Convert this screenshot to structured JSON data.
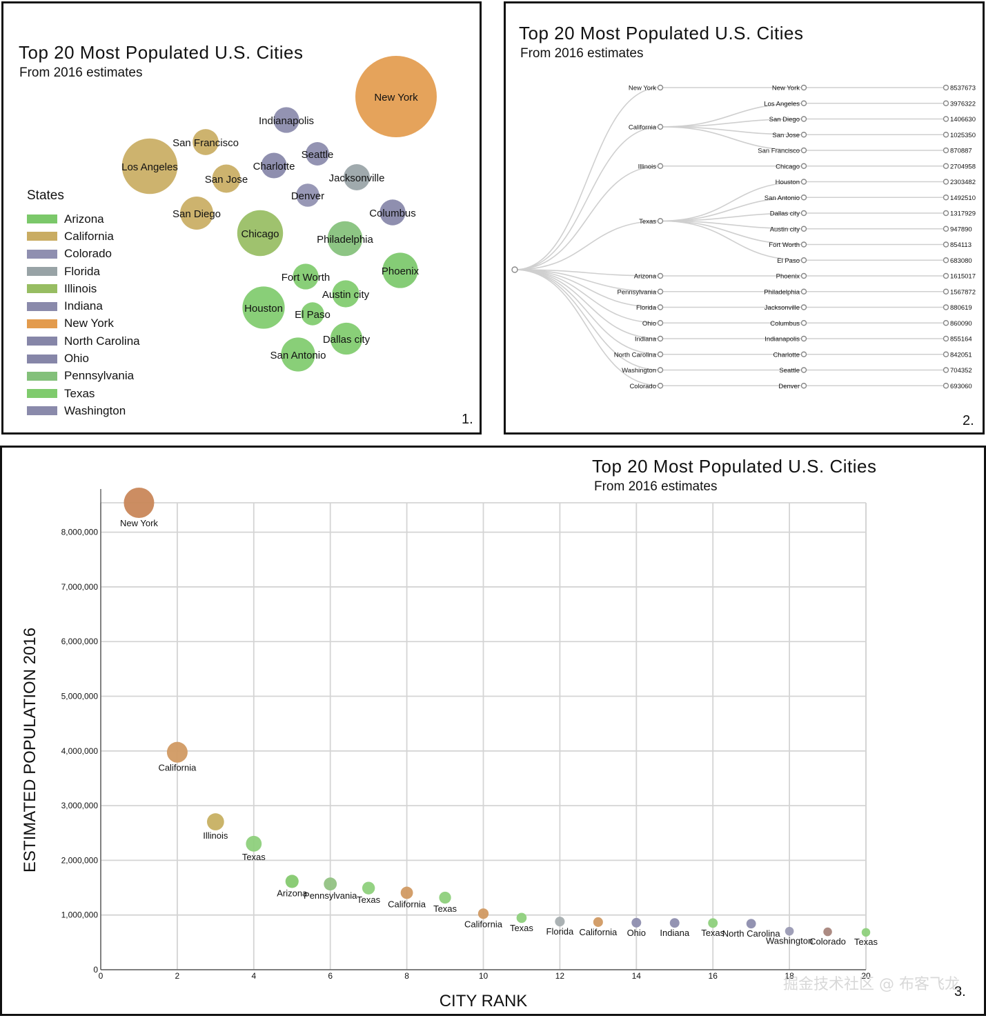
{
  "colors": {
    "Arizona": "#7bc86a",
    "California": "#c9ac62",
    "Colorado": "#8f8fb0",
    "Florida": "#98a3a6",
    "Illinois": "#97bd62",
    "Indiana": "#8a8aab",
    "New York": "#e39b4d",
    "North Carolina": "#8686a8",
    "Ohio": "#8686a8",
    "Pennsylvania": "#83c07a",
    "Texas": "#7fcb6d",
    "Washington": "#8a8aab"
  },
  "panel1": {
    "title": "Top 20 Most Populated U.S. Cities",
    "subtitle": "From 2016 estimates",
    "number": "1.",
    "legend_title": "States",
    "legend": [
      "Arizona",
      "California",
      "Colorado",
      "Florida",
      "Illinois",
      "Indiana",
      "New York",
      "North Carolina",
      "Ohio",
      "Pennsylvania",
      "Texas",
      "Washington"
    ]
  },
  "panel2": {
    "title": "Top 20 Most Populated U.S. Cities",
    "subtitle": "From 2016 estimates",
    "number": "2."
  },
  "panel3": {
    "title": "Top 20 Most Populated U.S. Cities",
    "subtitle": "From 2016 estimates",
    "number": "3."
  },
  "watermark": "掘金技术社区 @ 布客飞龙",
  "chart_data": [
    {
      "type": "bubble-pack",
      "title": "Top 20 Most Populated U.S. Cities",
      "subtitle": "From 2016 estimates",
      "legend_title": "States",
      "points": [
        {
          "city": "New York",
          "state": "New York",
          "population": 8537673
        },
        {
          "city": "Los Angeles",
          "state": "California",
          "population": 3976322
        },
        {
          "city": "Chicago",
          "state": "Illinois",
          "population": 2704958
        },
        {
          "city": "Houston",
          "state": "Texas",
          "population": 2303482
        },
        {
          "city": "Phoenix",
          "state": "Arizona",
          "population": 1615017
        },
        {
          "city": "Philadelphia",
          "state": "Pennsylvania",
          "population": 1567872
        },
        {
          "city": "San Antonio",
          "state": "Texas",
          "population": 1492510
        },
        {
          "city": "San Diego",
          "state": "California",
          "population": 1406630
        },
        {
          "city": "Dallas city",
          "state": "Texas",
          "population": 1317929
        },
        {
          "city": "San Jose",
          "state": "California",
          "population": 1025350
        },
        {
          "city": "Austin city",
          "state": "Texas",
          "population": 947890
        },
        {
          "city": "Jacksonville",
          "state": "Florida",
          "population": 880619
        },
        {
          "city": "San Francisco",
          "state": "California",
          "population": 870887
        },
        {
          "city": "Columbus",
          "state": "Ohio",
          "population": 860090
        },
        {
          "city": "Indianapolis",
          "state": "Indiana",
          "population": 855164
        },
        {
          "city": "Fort Worth",
          "state": "Texas",
          "population": 854113
        },
        {
          "city": "Charlotte",
          "state": "North Carolina",
          "population": 842051
        },
        {
          "city": "Seattle",
          "state": "Washington",
          "population": 704352
        },
        {
          "city": "Denver",
          "state": "Colorado",
          "population": 693060
        },
        {
          "city": "El Paso",
          "state": "Texas",
          "population": 683080
        }
      ]
    },
    {
      "type": "tree",
      "title": "Top 20 Most Populated U.S. Cities",
      "subtitle": "From 2016 estimates",
      "groups": [
        {
          "state": "New York",
          "cities": [
            {
              "city": "New York",
              "population": 8537673
            }
          ]
        },
        {
          "state": "California",
          "cities": [
            {
              "city": "Los Angeles",
              "population": 3976322
            },
            {
              "city": "San Diego",
              "population": 1406630
            },
            {
              "city": "San Jose",
              "population": 1025350
            },
            {
              "city": "San Francisco",
              "population": 870887
            }
          ]
        },
        {
          "state": "Illinois",
          "cities": [
            {
              "city": "Chicago",
              "population": 2704958
            }
          ]
        },
        {
          "state": "Texas",
          "cities": [
            {
              "city": "Houston",
              "population": 2303482
            },
            {
              "city": "San Antonio",
              "population": 1492510
            },
            {
              "city": "Dallas city",
              "population": 1317929
            },
            {
              "city": "Austin city",
              "population": 947890
            },
            {
              "city": "Fort Worth",
              "population": 854113
            },
            {
              "city": "El Paso",
              "population": 683080
            }
          ]
        },
        {
          "state": "Arizona",
          "cities": [
            {
              "city": "Phoenix",
              "population": 1615017
            }
          ]
        },
        {
          "state": "Pennsylvania",
          "cities": [
            {
              "city": "Philadelphia",
              "population": 1567872
            }
          ]
        },
        {
          "state": "Florida",
          "cities": [
            {
              "city": "Jacksonville",
              "population": 880619
            }
          ]
        },
        {
          "state": "Ohio",
          "cities": [
            {
              "city": "Columbus",
              "population": 860090
            }
          ]
        },
        {
          "state": "Indiana",
          "cities": [
            {
              "city": "Indianapolis",
              "population": 855164
            }
          ]
        },
        {
          "state": "North Carolina",
          "cities": [
            {
              "city": "Charlotte",
              "population": 842051
            }
          ]
        },
        {
          "state": "Washington",
          "cities": [
            {
              "city": "Seattle",
              "population": 704352
            }
          ]
        },
        {
          "state": "Colorado",
          "cities": [
            {
              "city": "Denver",
              "population": 693060
            }
          ]
        }
      ]
    },
    {
      "type": "scatter",
      "title": "Top 20 Most Populated U.S. Cities",
      "subtitle": "From 2016 estimates",
      "xlabel": "CITY RANK",
      "ylabel": "ESTIMATED POPULATION 2016",
      "xlim": [
        0,
        20
      ],
      "ylim": [
        0,
        8537673
      ],
      "xticks": [
        0,
        2,
        4,
        6,
        8,
        10,
        12,
        14,
        16,
        18,
        20
      ],
      "xtick_labels": [
        "0",
        "2",
        "4",
        "6",
        "8",
        "10",
        "12",
        "14",
        "16",
        "18",
        "20"
      ],
      "yticks": [
        0,
        1000000,
        2000000,
        3000000,
        4000000,
        5000000,
        6000000,
        7000000,
        8000000
      ],
      "ytick_labels": [
        "0",
        "1,000,000",
        "2,000,000",
        "3,000,000",
        "4,000,000",
        "5,000,000",
        "6,000,000",
        "7,000,000",
        "8,000,000"
      ],
      "grid": true,
      "points": [
        {
          "x": 1,
          "y": 8537673,
          "label": "New York"
        },
        {
          "x": 2,
          "y": 3976322,
          "label": "California"
        },
        {
          "x": 3,
          "y": 2704958,
          "label": "Illinois"
        },
        {
          "x": 4,
          "y": 2303482,
          "label": "Texas"
        },
        {
          "x": 5,
          "y": 1615017,
          "label": "Arizona"
        },
        {
          "x": 6,
          "y": 1567872,
          "label": "Pennsylvania"
        },
        {
          "x": 7,
          "y": 1492510,
          "label": "Texas"
        },
        {
          "x": 8,
          "y": 1406630,
          "label": "California"
        },
        {
          "x": 9,
          "y": 1317929,
          "label": "Texas"
        },
        {
          "x": 10,
          "y": 1025350,
          "label": "California"
        },
        {
          "x": 11,
          "y": 947890,
          "label": "Texas"
        },
        {
          "x": 12,
          "y": 880619,
          "label": "Florida"
        },
        {
          "x": 13,
          "y": 870887,
          "label": "California"
        },
        {
          "x": 14,
          "y": 860090,
          "label": "Ohio"
        },
        {
          "x": 15,
          "y": 855164,
          "label": "Indiana"
        },
        {
          "x": 16,
          "y": 854113,
          "label": "Texas"
        },
        {
          "x": 17,
          "y": 842051,
          "label": "North Carolina"
        },
        {
          "x": 18,
          "y": 704352,
          "label": "Washington"
        },
        {
          "x": 19,
          "y": 693060,
          "label": "Colorado"
        },
        {
          "x": 20,
          "y": 683080,
          "label": "Texas"
        }
      ]
    }
  ]
}
